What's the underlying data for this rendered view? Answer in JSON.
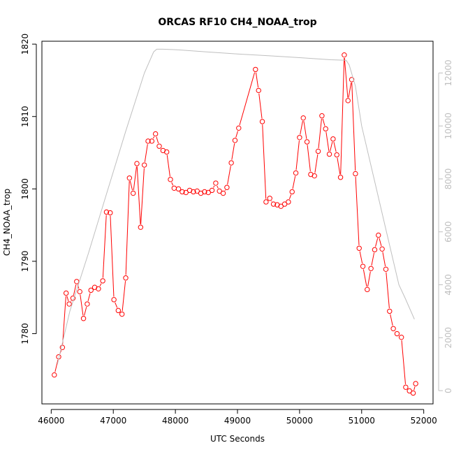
{
  "chart_data": {
    "type": "line",
    "title": "ORCAS RF10 CH4_NOAA_trop",
    "xlabel": "UTC Seconds",
    "ylabel": "CH4_NOAA_trop",
    "xlim": [
      45850,
      52150
    ],
    "ylim": [
      1770.3,
      1820.4
    ],
    "y2lim": [
      -500,
      13200
    ],
    "x_ticks": [
      46000,
      47000,
      48000,
      49000,
      50000,
      51000,
      52000
    ],
    "y_ticks": [
      1780,
      1790,
      1800,
      1810,
      1820
    ],
    "y2_ticks": [
      0,
      2000,
      4000,
      6000,
      8000,
      10000,
      12000
    ],
    "grid": false,
    "series": [
      {
        "type": "line+markers",
        "color": "#ff0000",
        "axis": "left",
        "x": [
          46050,
          46120,
          46180,
          46240,
          46290,
          46350,
          46410,
          46460,
          46520,
          46580,
          46640,
          46700,
          46760,
          46830,
          46890,
          46950,
          47010,
          47080,
          47140,
          47200,
          47260,
          47320,
          47380,
          47440,
          47500,
          47560,
          47620,
          47680,
          47740,
          47800,
          47860,
          47920,
          47980,
          48050,
          48110,
          48170,
          48230,
          48290,
          48350,
          48410,
          48470,
          48530,
          48590,
          48650,
          48710,
          48770,
          48830,
          48900,
          48960,
          49020,
          49290,
          49340,
          49400,
          49460,
          49520,
          49580,
          49640,
          49700,
          49760,
          49820,
          49880,
          49940,
          50000,
          50060,
          50120,
          50180,
          50240,
          50300,
          50360,
          50420,
          50480,
          50540,
          50600,
          50660,
          50720,
          50780,
          50840,
          50900,
          50960,
          51020,
          51090,
          51150,
          51210,
          51270,
          51330,
          51390,
          51450,
          51510,
          51570,
          51640,
          51710,
          51770,
          51830,
          51870
        ],
        "y": [
          1774.3,
          1776.8,
          1778.1,
          1785.6,
          1784.1,
          1784.9,
          1787.2,
          1785.8,
          1782.1,
          1784.1,
          1786.0,
          1786.4,
          1786.2,
          1787.3,
          1796.8,
          1796.7,
          1784.7,
          1783.2,
          1782.7,
          1787.7,
          1801.5,
          1799.4,
          1803.5,
          1794.7,
          1803.3,
          1806.6,
          1806.6,
          1807.6,
          1805.9,
          1805.3,
          1805.1,
          1801.3,
          1800.1,
          1800.0,
          1799.6,
          1799.5,
          1799.8,
          1799.6,
          1799.7,
          1799.4,
          1799.6,
          1799.5,
          1799.8,
          1800.8,
          1799.7,
          1799.4,
          1800.2,
          1803.6,
          1806.7,
          1808.4,
          1816.5,
          1813.6,
          1809.3,
          1798.2,
          1798.7,
          1797.9,
          1797.8,
          1797.6,
          1797.9,
          1798.2,
          1799.6,
          1802.2,
          1807.1,
          1809.8,
          1806.5,
          1802.0,
          1801.8,
          1805.2,
          1810.1,
          1808.3,
          1804.8,
          1806.9,
          1804.7,
          1801.6,
          1818.5,
          1812.2,
          1815.1,
          1802.1,
          1791.8,
          1789.3,
          1786.1,
          1789.0,
          1791.6,
          1793.6,
          1791.7,
          1788.9,
          1783.1,
          1780.7,
          1780.0,
          1779.5,
          1772.6,
          1772.1,
          1771.8,
          1773.1
        ]
      },
      {
        "type": "line",
        "color": "#bfbfbf",
        "axis": "right",
        "x": [
          46100,
          46300,
          46600,
          46900,
          47200,
          47500,
          47650,
          47700,
          47800,
          48000,
          48500,
          49000,
          49500,
          50000,
          50500,
          50750,
          50800,
          50900,
          51000,
          51200,
          51400,
          51500,
          51600,
          51700,
          51850
        ],
        "y": [
          1000,
          3000,
          5200,
          7500,
          9800,
          12000,
          12800,
          12900,
          12900,
          12880,
          12800,
          12720,
          12650,
          12580,
          12500,
          12480,
          12300,
          11500,
          10000,
          8000,
          6000,
          5000,
          4000,
          3500,
          2700
        ]
      }
    ]
  }
}
